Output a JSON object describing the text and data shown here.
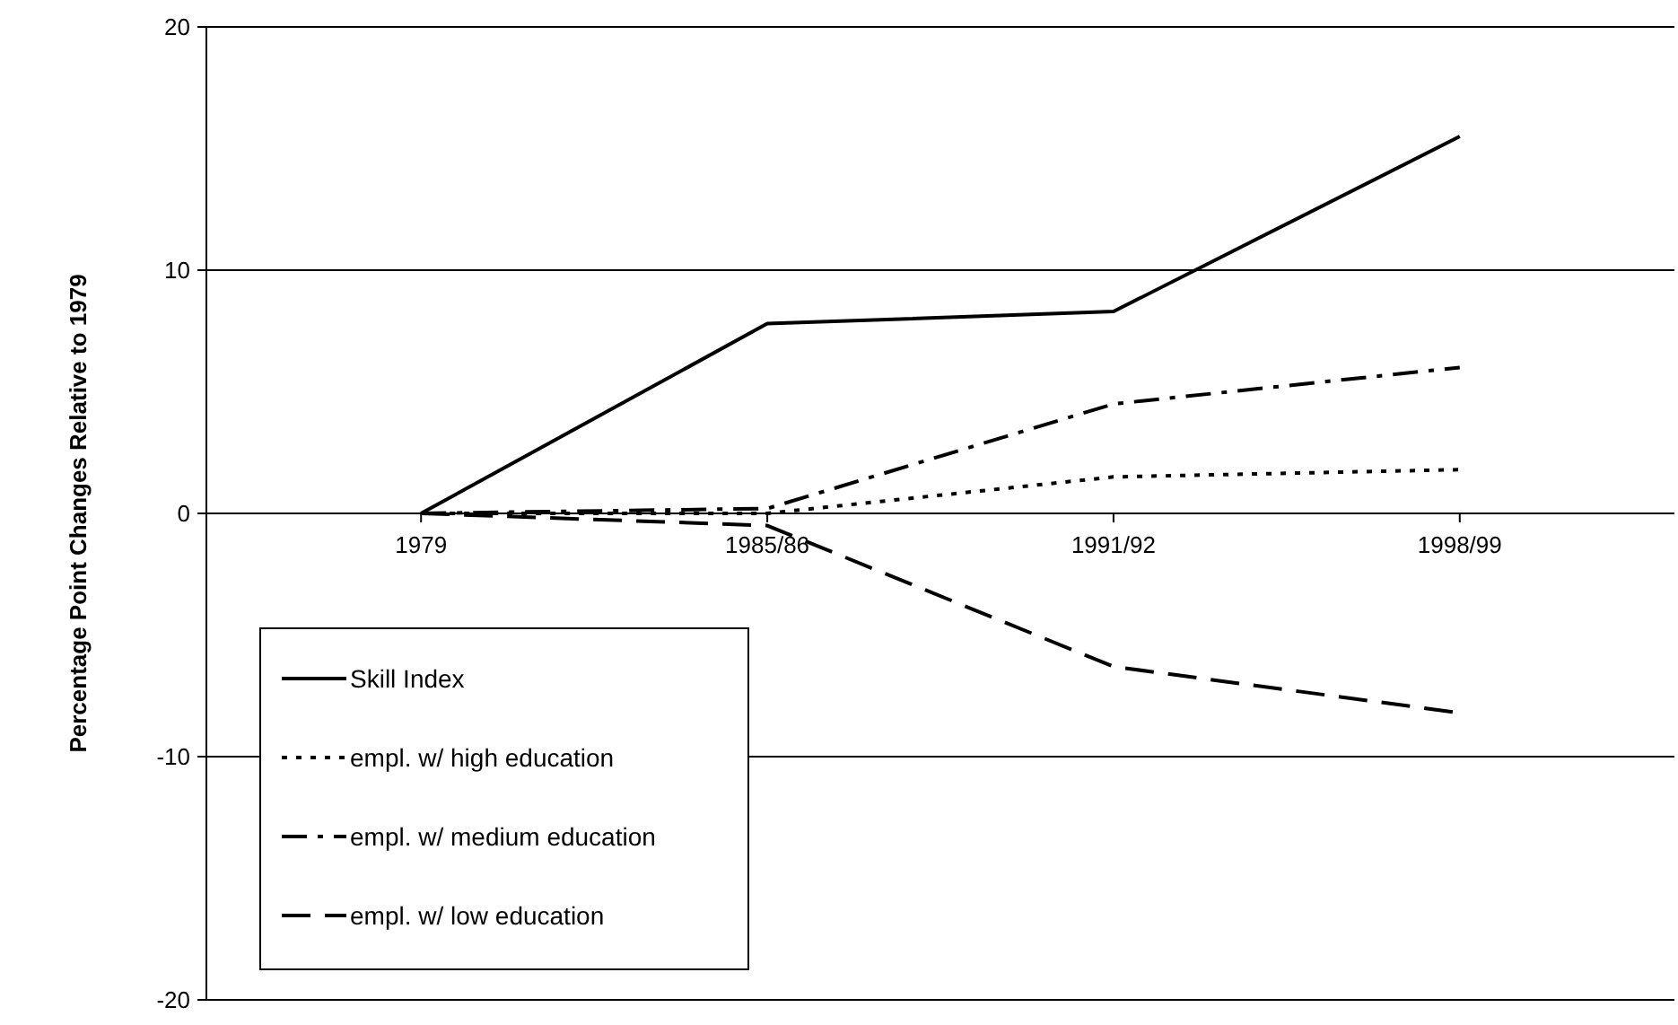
{
  "chart_data": {
    "type": "line",
    "ylabel": "Percentage Point Changes Relative to 1979",
    "categories": [
      "1979",
      "1985/86",
      "1991/92",
      "1998/99"
    ],
    "series": [
      {
        "name": "Skill Index",
        "color": "#000000",
        "line_style": "solid",
        "values": [
          0,
          7.8,
          8.3,
          15.5
        ]
      },
      {
        "name": "empl. w/ high education",
        "color": "#000000",
        "line_style": "dotted",
        "values": [
          0,
          0,
          1.5,
          1.8
        ]
      },
      {
        "name": "empl. w/ medium education",
        "color": "#000000",
        "line_style": "dashdot",
        "values": [
          0,
          0.2,
          4.5,
          6.0
        ]
      },
      {
        "name": "empl. w/ low education",
        "color": "#000000",
        "line_style": "dashed",
        "values": [
          0,
          -0.5,
          -6.3,
          -8.2
        ]
      }
    ],
    "ylim": [
      -20,
      20
    ],
    "yticks": [
      -20,
      -10,
      0,
      10,
      20
    ],
    "grid": "y",
    "legend": "bottom left",
    "marker": "none"
  }
}
